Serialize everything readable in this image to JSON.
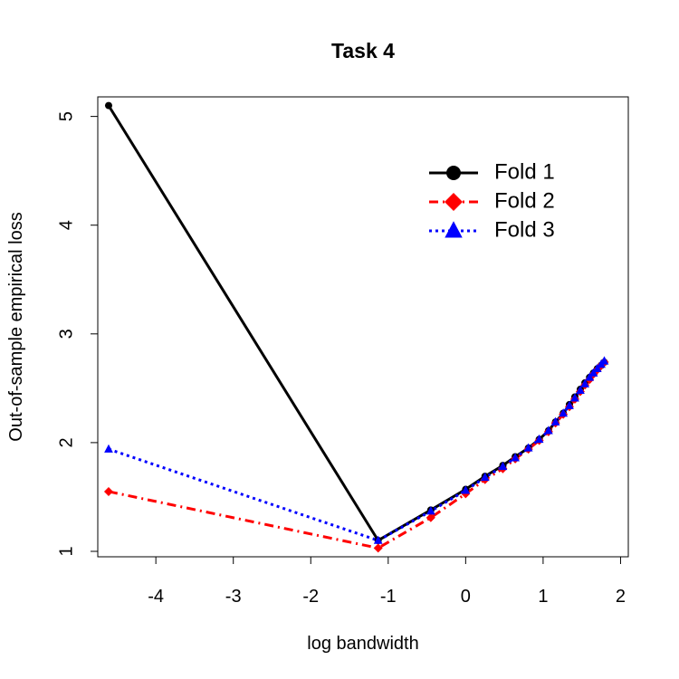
{
  "chart_data": {
    "type": "line",
    "title": "Task 4",
    "xlabel": "log bandwidth",
    "ylabel": "Out-of-sample empirical loss",
    "xlim": [
      -4.75,
      2.1
    ],
    "ylim": [
      0.95,
      5.18
    ],
    "xticks": [
      -4,
      -3,
      -2,
      -1,
      0,
      1,
      2
    ],
    "xtick_labels": [
      "-4",
      "-3",
      "-2",
      "-1",
      "0",
      "1",
      "2"
    ],
    "yticks": [
      1,
      2,
      3,
      4,
      5
    ],
    "ytick_labels": [
      "1",
      "2",
      "3",
      "4",
      "5"
    ],
    "grid": false,
    "legend_position": "top-right",
    "x": [
      -4.61,
      -1.13,
      -0.45,
      0.0,
      0.25,
      0.48,
      0.64,
      0.81,
      0.95,
      1.07,
      1.16,
      1.26,
      1.34,
      1.41,
      1.48,
      1.54,
      1.6,
      1.65,
      1.7,
      1.75,
      1.79
    ],
    "series": [
      {
        "name": "Fold 1",
        "color": "#000000",
        "marker": "circle",
        "dash": "solid",
        "values": [
          5.1,
          1.1,
          1.38,
          1.57,
          1.69,
          1.79,
          1.87,
          1.95,
          2.03,
          2.11,
          2.19,
          2.27,
          2.35,
          2.42,
          2.49,
          2.55,
          2.6,
          2.64,
          2.68,
          2.71,
          2.74
        ]
      },
      {
        "name": "Fold 2",
        "color": "#ff0000",
        "marker": "diamond",
        "dash": "dotdash",
        "values": [
          1.55,
          1.03,
          1.31,
          1.53,
          1.66,
          1.76,
          1.85,
          1.94,
          2.02,
          2.1,
          2.18,
          2.26,
          2.33,
          2.4,
          2.47,
          2.53,
          2.58,
          2.63,
          2.67,
          2.71,
          2.74
        ]
      },
      {
        "name": "Fold 3",
        "color": "#0000ff",
        "marker": "triangle",
        "dash": "dotted",
        "values": [
          1.94,
          1.1,
          1.37,
          1.56,
          1.68,
          1.78,
          1.86,
          1.95,
          2.03,
          2.11,
          2.19,
          2.27,
          2.34,
          2.41,
          2.48,
          2.54,
          2.6,
          2.64,
          2.68,
          2.72,
          2.75
        ]
      }
    ]
  }
}
